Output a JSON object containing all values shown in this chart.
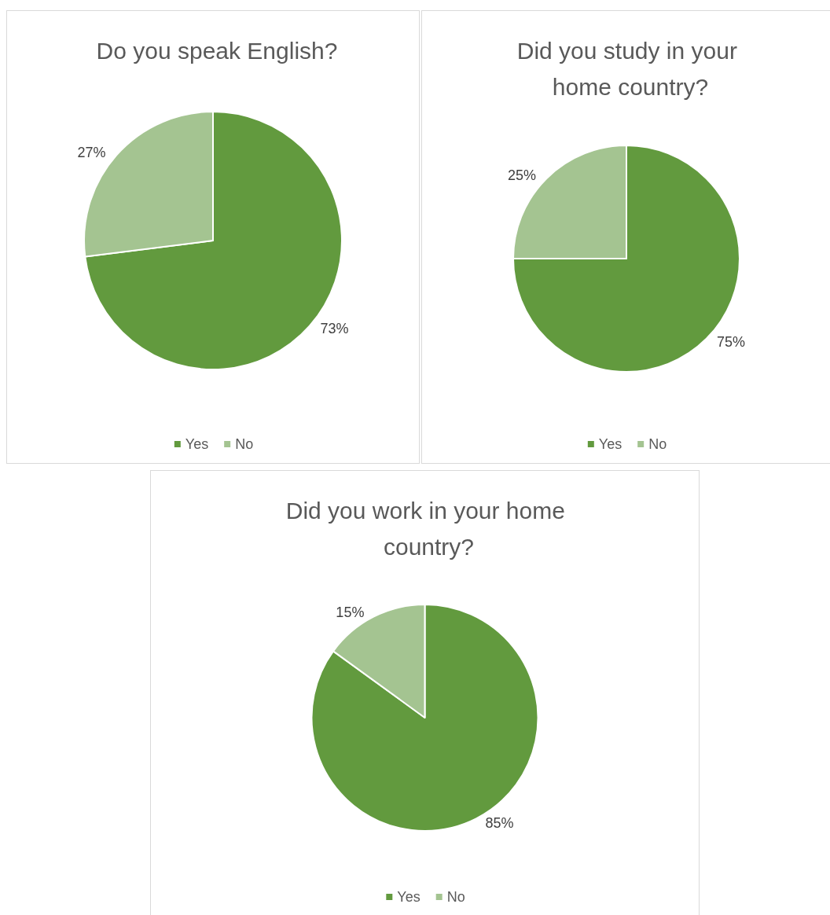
{
  "chart_data": [
    {
      "type": "pie",
      "title": "Do you speak English?",
      "categories": [
        "Yes",
        "No"
      ],
      "values": [
        73,
        27
      ],
      "value_labels": [
        "73%",
        "27%"
      ],
      "colors": [
        "#629a3e",
        "#a4c491"
      ],
      "legend": "bottom"
    },
    {
      "type": "pie",
      "title": "Did you study in your home country?",
      "categories": [
        "Yes",
        "No"
      ],
      "values": [
        75,
        25
      ],
      "value_labels": [
        "75%",
        "25%"
      ],
      "colors": [
        "#629a3e",
        "#a4c491"
      ],
      "legend": "bottom"
    },
    {
      "type": "pie",
      "title": "Did you work in your home country?",
      "categories": [
        "Yes",
        "No"
      ],
      "values": [
        85,
        15
      ],
      "value_labels": [
        "85%",
        "15%"
      ],
      "colors": [
        "#629a3e",
        "#a4c491"
      ],
      "legend": "bottom"
    }
  ]
}
